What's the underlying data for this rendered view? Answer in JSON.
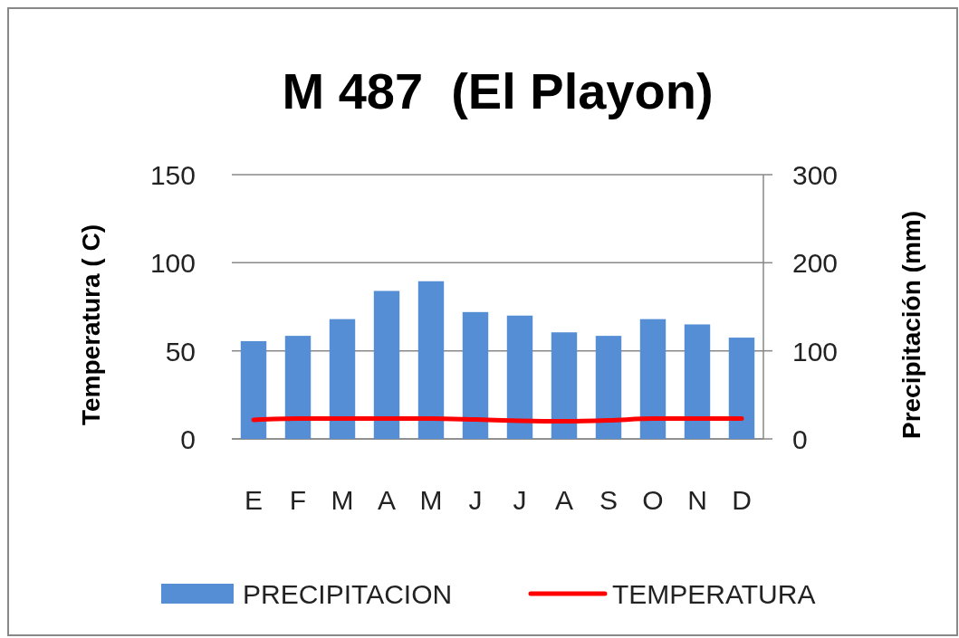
{
  "chart_data": {
    "type": "bar",
    "title": "M 487  (El Playon)",
    "ylabel": "Temperatura ( C)",
    "y2label": "Precipitación (mm)",
    "categories": [
      "E",
      "F",
      "M",
      "A",
      "M",
      "J",
      "J",
      "A",
      "S",
      "O",
      "N",
      "D"
    ],
    "series": [
      {
        "name": "PRECIPITACION",
        "axis": "y2",
        "color": "#558ed5",
        "values": [
          111,
          117,
          136,
          168,
          179,
          144,
          140,
          121,
          117,
          136,
          130,
          115
        ]
      },
      {
        "name": "TEMPERATURA",
        "type": "line",
        "color": "#ff0000",
        "values": [
          10.8,
          11.5,
          11.5,
          11.5,
          11.5,
          11,
          10.3,
          10,
          10.5,
          11.5,
          11.5,
          11.5
        ]
      }
    ],
    "ylim": [
      0,
      150
    ],
    "yticks": [
      0,
      50,
      100,
      150
    ],
    "y2lim": [
      0,
      300
    ],
    "y2ticks": [
      0,
      100,
      200,
      300
    ],
    "grid": "y",
    "legend": "bottom",
    "marker": "none"
  }
}
